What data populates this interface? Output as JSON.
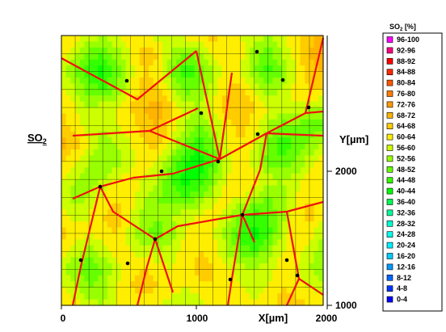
{
  "chart_data": {
    "type": "heatmap",
    "title": "",
    "series_label": "SO",
    "series_label_sub": "2",
    "xlabel": "X[µm]",
    "ylabel": "Y[µm]",
    "xlim": [
      0,
      2000
    ],
    "ylim": [
      1000,
      2000
    ],
    "x_ticks": [
      "0",
      "1000",
      "2000"
    ],
    "y_ticks": [
      "2000",
      "1000"
    ],
    "legend_title_main": "SO",
    "legend_title_sub": "2",
    "legend_title_rest": " [%]",
    "legend_placement": "right",
    "legend": [
      {
        "label": "96-100",
        "color": "#ff00ff"
      },
      {
        "label": "92-96",
        "color": "#ff0080"
      },
      {
        "label": "88-92",
        "color": "#ff0000"
      },
      {
        "label": "84-88",
        "color": "#ff2a00"
      },
      {
        "label": "80-84",
        "color": "#ff5500"
      },
      {
        "label": "76-80",
        "color": "#ff7a00"
      },
      {
        "label": "72-76",
        "color": "#ff9900"
      },
      {
        "label": "68-72",
        "color": "#ffb300"
      },
      {
        "label": "64-68",
        "color": "#ffcc00"
      },
      {
        "label": "60-64",
        "color": "#ffee00"
      },
      {
        "label": "56-60",
        "color": "#ccff00"
      },
      {
        "label": "52-56",
        "color": "#99ff00"
      },
      {
        "label": "48-52",
        "color": "#66ff00"
      },
      {
        "label": "44-48",
        "color": "#33ff00"
      },
      {
        "label": "40-44",
        "color": "#00ff00"
      },
      {
        "label": "36-40",
        "color": "#00ff55"
      },
      {
        "label": "32-36",
        "color": "#00ff99"
      },
      {
        "label": "28-32",
        "color": "#00ffcc"
      },
      {
        "label": "24-28",
        "color": "#00ffee"
      },
      {
        "label": "20-24",
        "color": "#00eeff"
      },
      {
        "label": "16-20",
        "color": "#00ccff"
      },
      {
        "label": "12-16",
        "color": "#0099ff"
      },
      {
        "label": "8-12",
        "color": "#0066ff"
      },
      {
        "label": "4-8",
        "color": "#0033ff"
      },
      {
        "label": "0-4",
        "color": "#0000ff"
      }
    ],
    "grid": true,
    "grid_values": [
      [
        64,
        62,
        60,
        56,
        60,
        64,
        62,
        58,
        60,
        62,
        64,
        66,
        62,
        60,
        58,
        56,
        60,
        62,
        66,
        70
      ],
      [
        62,
        58,
        50,
        48,
        54,
        60,
        66,
        64,
        56,
        50,
        54,
        60,
        64,
        62,
        54,
        50,
        56,
        62,
        68,
        72
      ],
      [
        58,
        52,
        44,
        42,
        50,
        58,
        64,
        62,
        52,
        46,
        48,
        56,
        62,
        60,
        52,
        46,
        52,
        60,
        66,
        68
      ],
      [
        60,
        56,
        50,
        48,
        52,
        60,
        66,
        64,
        58,
        50,
        52,
        58,
        64,
        66,
        60,
        54,
        56,
        62,
        64,
        66
      ],
      [
        64,
        60,
        56,
        58,
        60,
        64,
        68,
        70,
        64,
        58,
        56,
        60,
        66,
        68,
        64,
        60,
        58,
        60,
        56,
        54
      ],
      [
        66,
        62,
        58,
        56,
        60,
        62,
        66,
        68,
        62,
        56,
        52,
        56,
        62,
        66,
        62,
        56,
        50,
        52,
        48,
        50
      ],
      [
        70,
        66,
        60,
        54,
        56,
        60,
        64,
        66,
        60,
        50,
        46,
        52,
        60,
        64,
        60,
        52,
        46,
        48,
        52,
        58
      ],
      [
        64,
        60,
        56,
        52,
        54,
        58,
        62,
        60,
        52,
        44,
        40,
        48,
        58,
        62,
        58,
        50,
        48,
        52,
        58,
        62
      ],
      [
        60,
        56,
        54,
        56,
        60,
        62,
        60,
        56,
        48,
        42,
        44,
        52,
        60,
        64,
        62,
        58,
        56,
        58,
        62,
        64
      ],
      [
        58,
        54,
        56,
        60,
        64,
        62,
        56,
        52,
        50,
        48,
        52,
        58,
        62,
        60,
        56,
        52,
        54,
        60,
        64,
        62
      ],
      [
        62,
        58,
        60,
        64,
        66,
        60,
        54,
        52,
        56,
        58,
        60,
        62,
        58,
        50,
        46,
        48,
        54,
        62,
        66,
        60
      ],
      [
        66,
        62,
        60,
        62,
        64,
        58,
        52,
        50,
        54,
        60,
        62,
        60,
        54,
        46,
        42,
        46,
        56,
        64,
        62,
        56
      ],
      [
        62,
        58,
        54,
        58,
        62,
        60,
        58,
        56,
        58,
        62,
        64,
        62,
        56,
        50,
        48,
        54,
        60,
        62,
        58,
        54
      ],
      [
        58,
        52,
        48,
        52,
        58,
        62,
        64,
        62,
        60,
        62,
        66,
        64,
        60,
        58,
        56,
        58,
        62,
        60,
        56,
        52
      ],
      [
        60,
        56,
        52,
        54,
        60,
        64,
        66,
        64,
        62,
        60,
        62,
        64,
        62,
        60,
        58,
        60,
        64,
        62,
        60,
        58
      ],
      [
        64,
        62,
        58,
        56,
        60,
        62,
        62,
        60,
        58,
        56,
        58,
        62,
        64,
        62,
        60,
        62,
        66,
        66,
        64,
        62
      ]
    ],
    "boundaries": [
      [
        [
          76,
          72
        ],
        [
          170,
          123
        ],
        [
          243,
          63
        ]
      ],
      [
        [
          243,
          63
        ],
        [
          272,
          197
        ],
        [
          287,
          90
        ]
      ],
      [
        [
          185,
          162
        ],
        [
          245,
          134
        ]
      ],
      [
        [
          90,
          168
        ],
        [
          185,
          162
        ],
        [
          272,
          197
        ]
      ],
      [
        [
          272,
          197
        ],
        [
          330,
          165
        ],
        [
          378,
          140
        ],
        [
          400,
          47
        ]
      ],
      [
        [
          330,
          165
        ],
        [
          400,
          168
        ]
      ],
      [
        [
          378,
          140
        ],
        [
          400,
          138
        ]
      ],
      [
        [
          330,
          165
        ],
        [
          322,
          210
        ]
      ],
      [
        [
          272,
          197
        ],
        [
          214,
          215
        ],
        [
          165,
          220
        ]
      ],
      [
        [
          165,
          220
        ],
        [
          124,
          231
        ],
        [
          90,
          246
        ]
      ],
      [
        [
          124,
          231
        ],
        [
          140,
          262
        ],
        [
          192,
          296
        ]
      ],
      [
        [
          192,
          296
        ],
        [
          220,
          280
        ],
        [
          300,
          266
        ],
        [
          322,
          210
        ]
      ],
      [
        [
          300,
          266
        ],
        [
          315,
          300
        ]
      ],
      [
        [
          300,
          266
        ],
        [
          355,
          262
        ],
        [
          400,
          250
        ]
      ],
      [
        [
          192,
          296
        ],
        [
          182,
          330
        ],
        [
          170,
          378
        ]
      ],
      [
        [
          124,
          231
        ],
        [
          100,
          330
        ],
        [
          90,
          378
        ]
      ],
      [
        [
          192,
          296
        ],
        [
          214,
          362
        ]
      ],
      [
        [
          300,
          266
        ],
        [
          287,
          345
        ],
        [
          282,
          378
        ]
      ],
      [
        [
          355,
          262
        ],
        [
          370,
          345
        ],
        [
          400,
          365
        ]
      ],
      [
        [
          370,
          345
        ],
        [
          355,
          378
        ]
      ]
    ],
    "grain_points": [
      [
        318,
        64
      ],
      [
        157,
        100
      ],
      [
        350,
        99
      ],
      [
        382,
        133
      ],
      [
        249,
        140
      ],
      [
        319,
        166
      ],
      [
        200,
        212
      ],
      [
        270,
        200
      ],
      [
        124,
        231
      ],
      [
        300,
        266
      ],
      [
        192,
        296
      ],
      [
        158,
        326
      ],
      [
        285,
        346
      ],
      [
        368,
        341
      ],
      [
        100,
        322
      ],
      [
        355,
        322
      ]
    ]
  }
}
